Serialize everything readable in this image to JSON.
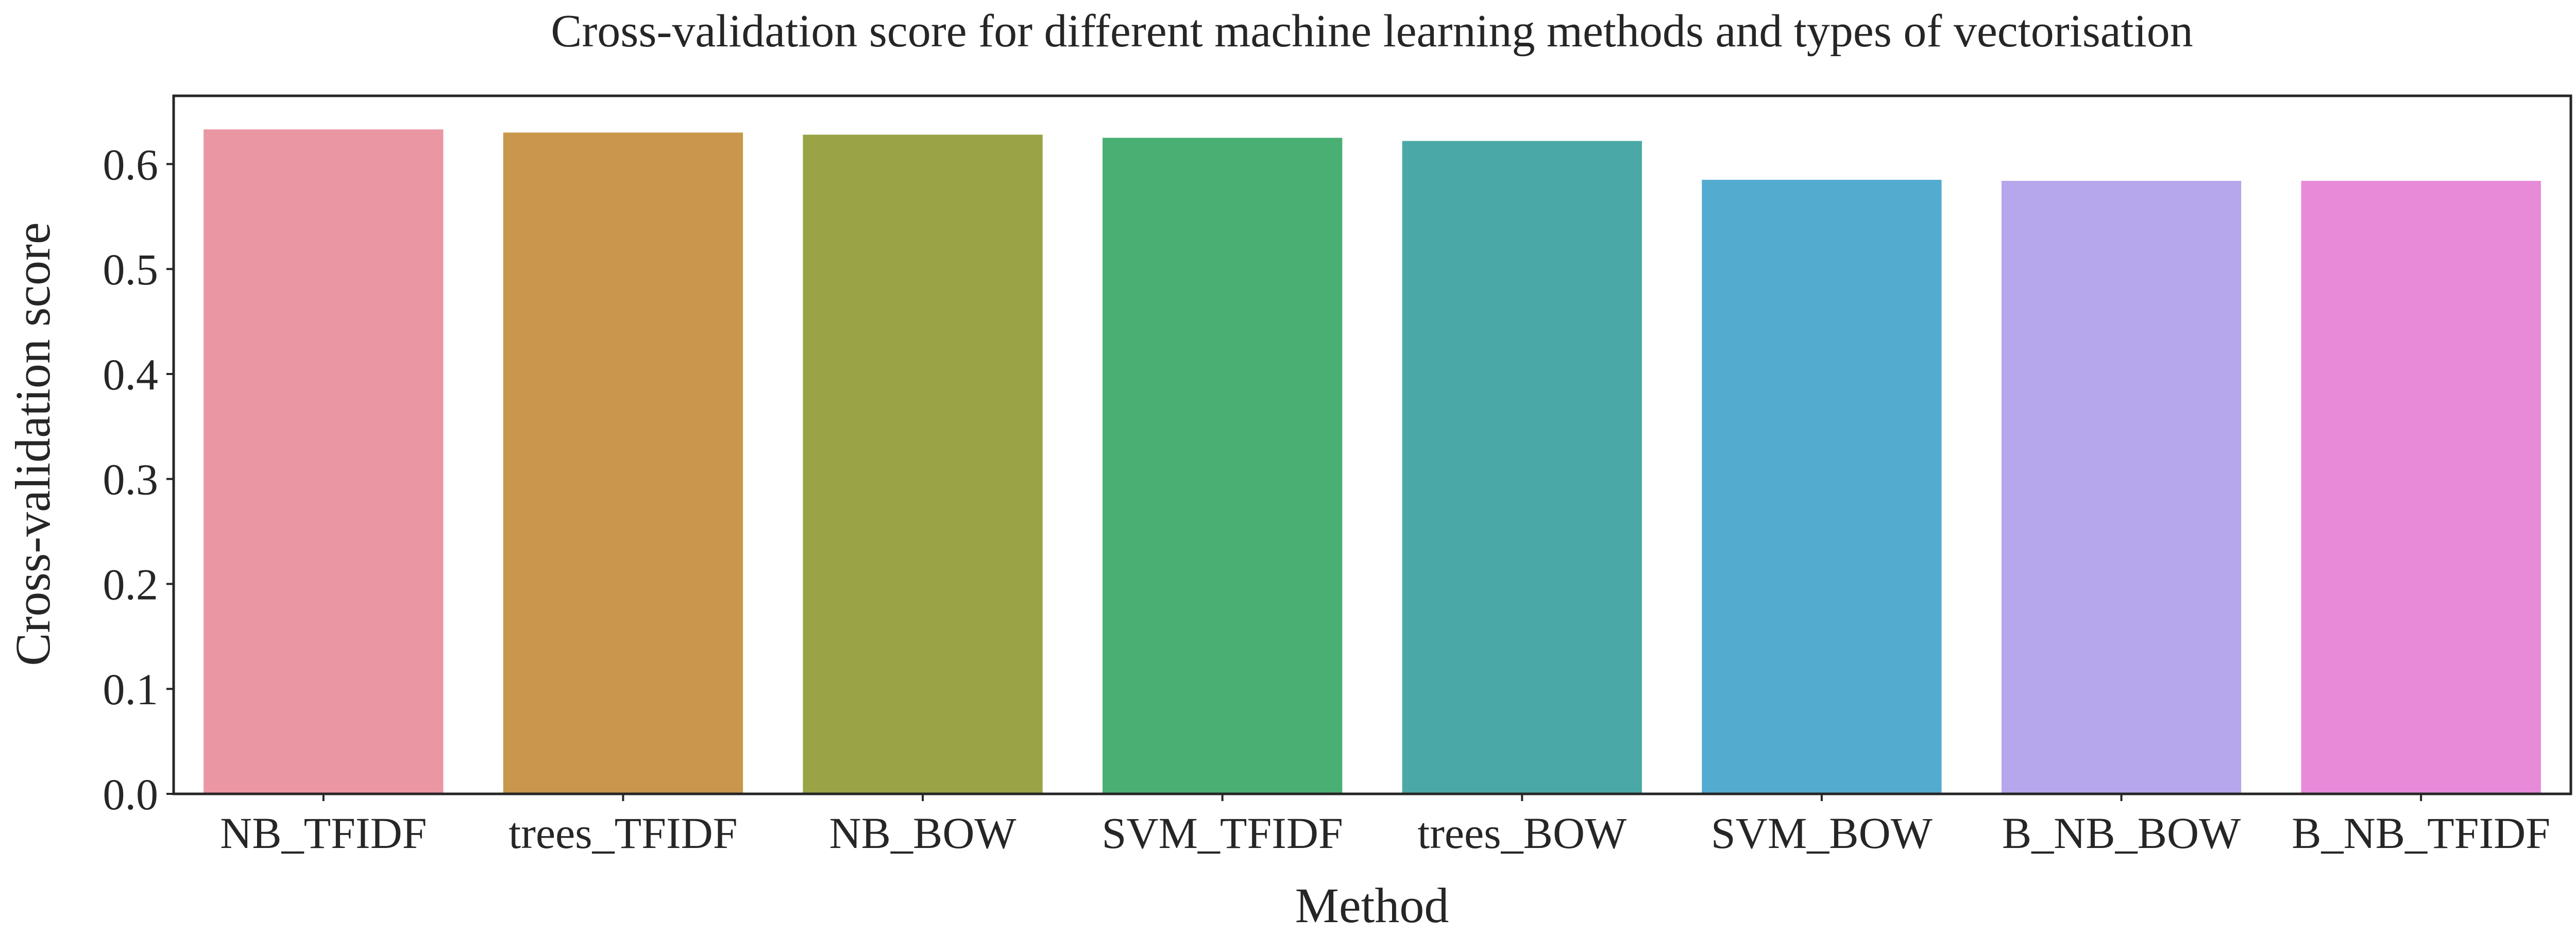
{
  "chart_data": {
    "type": "bar",
    "title": "Cross-validation score for different machine learning methods and types of vectorisation",
    "xlabel": "Method",
    "ylabel": "Cross-validation score",
    "categories": [
      "NB_TFIDF",
      "trees_TFIDF",
      "NB_BOW",
      "SVM_TFIDF",
      "trees_BOW",
      "SVM_BOW",
      "B_NB_BOW",
      "B_NB_TFIDF"
    ],
    "values": [
      0.633,
      0.63,
      0.628,
      0.625,
      0.622,
      0.585,
      0.584,
      0.584
    ],
    "colors": [
      "#ea96a3",
      "#c8964c",
      "#9aa446",
      "#4aaf73",
      "#4aa9a6",
      "#54abd0",
      "#b6a6ec",
      "#e78ad8"
    ],
    "yticks": [
      "0.0",
      "0.1",
      "0.2",
      "0.3",
      "0.4",
      "0.5",
      "0.6"
    ],
    "ylim": [
      0,
      0.665
    ],
    "grid": false,
    "legend": "none"
  }
}
